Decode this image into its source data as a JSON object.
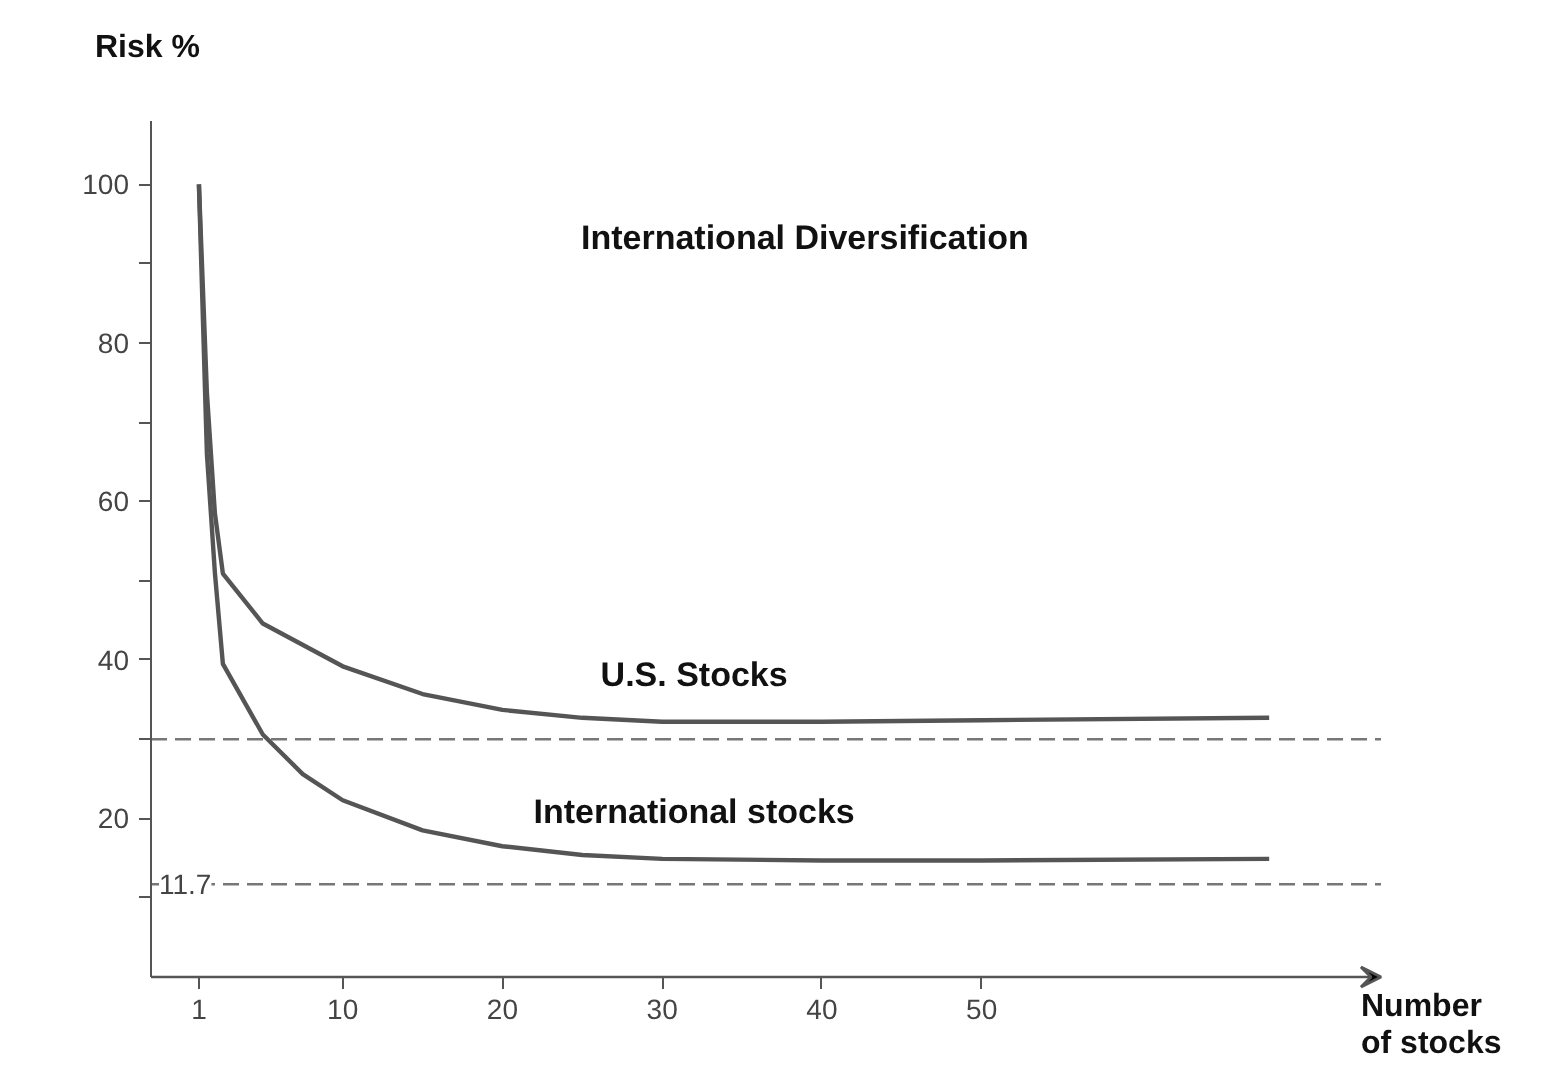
{
  "chart_data": {
    "type": "line",
    "title": "International Diversification",
    "xlabel": "Number\nof stocks",
    "ylabel": "Risk %",
    "xlim": [
      -2,
      75
    ],
    "xticks": [
      1,
      10,
      20,
      30,
      40,
      50
    ],
    "ylim": [
      0,
      108
    ],
    "yticks": [
      {
        "value": 10,
        "label": null
      },
      20,
      {
        "value": 30,
        "label": null
      },
      40,
      {
        "value": 50,
        "label": null
      },
      60,
      {
        "value": 70,
        "label": null
      },
      80,
      {
        "value": 90,
        "label": null
      },
      100
    ],
    "series": [
      {
        "name": "U.S. Stocks",
        "color": "#555555",
        "x": [
          1,
          1.5,
          2,
          2.5,
          5,
          10,
          15,
          20,
          25,
          30,
          40,
          50,
          68
        ],
        "values": [
          100,
          73.7,
          58.5,
          50.9,
          44.6,
          39.2,
          35.7,
          33.7,
          32.7,
          32.2,
          32.2,
          32.4,
          32.7
        ]
      },
      {
        "name": "International stocks",
        "color": "#555555",
        "x": [
          1,
          1.5,
          2,
          2.5,
          5,
          7.5,
          10,
          15,
          20,
          25,
          30,
          40,
          50,
          68
        ],
        "values": [
          100,
          66,
          51,
          39.5,
          30.6,
          25.6,
          22.3,
          18.5,
          16.5,
          15.4,
          14.9,
          14.7,
          14.7,
          14.9
        ]
      }
    ],
    "ref_lines": [
      {
        "axis": "y",
        "value": 30,
        "label": null,
        "color": "#777777",
        "line_style": "dashed"
      },
      {
        "axis": "y",
        "value": 11.7,
        "label": "11.7",
        "color": "#777777",
        "line_style": "dashed"
      }
    ],
    "grid": false,
    "marker": "none",
    "line_style": "solid"
  }
}
